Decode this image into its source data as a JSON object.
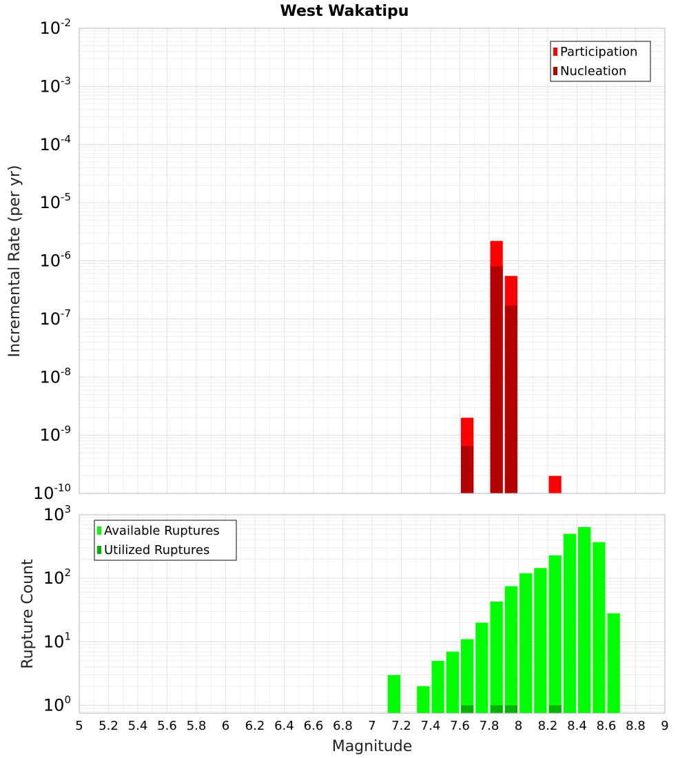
{
  "chart_data": {
    "title": "West Wakatipu",
    "xlabel": "Magnitude",
    "xlim": [
      5,
      9
    ],
    "xticks": [
      5,
      5.2,
      5.4,
      5.6,
      5.8,
      6,
      6.2,
      6.4,
      6.6,
      6.8,
      7,
      7.2,
      7.4,
      7.6,
      7.8,
      8,
      8.2,
      8.4,
      8.6,
      8.8,
      9
    ],
    "xtick_labels": [
      "5",
      "5.2",
      "5.4",
      "5.6",
      "5.8",
      "6",
      "6.2",
      "6.4",
      "6.6",
      "6.8",
      "7",
      "7.2",
      "7.4",
      "7.6",
      "7.8",
      "8",
      "8.2",
      "8.4",
      "8.6",
      "8.8",
      "9"
    ],
    "bin_width": 0.1,
    "panels": [
      {
        "type": "bar",
        "ylabel": "Incremental Rate (per yr)",
        "yscale": "log",
        "ylim": [
          1e-10,
          0.01
        ],
        "ytick_exponents": [
          "-10",
          "-9",
          "-8",
          "-7",
          "-6",
          "-5",
          "-4",
          "-3",
          "-2"
        ],
        "ytick_base": "10",
        "grid": true,
        "legend_position": "top-right",
        "series": [
          {
            "name": "Participation",
            "color": "#ff0000",
            "x": [
              7.65,
              7.85,
              7.95,
              8.25
            ],
            "values": [
              2e-09,
              2.2e-06,
              5.5e-07,
              2e-10
            ]
          },
          {
            "name": "Nucleation",
            "color": "#b30000",
            "x": [
              7.65,
              7.85,
              7.95
            ],
            "values": [
              6.5e-10,
              8e-07,
              1.7e-07
            ]
          }
        ]
      },
      {
        "type": "bar",
        "ylabel": "Rupture Count",
        "yscale": "log",
        "ylim": [
          0.75,
          1000
        ],
        "ytick_exponents": [
          "0",
          "1",
          "2",
          "3"
        ],
        "ytick_base": "10",
        "grid": true,
        "legend_position": "top-left",
        "series": [
          {
            "name": "Available Ruptures",
            "color": "#00ff00",
            "x": [
              7.15,
              7.35,
              7.45,
              7.55,
              7.65,
              7.75,
              7.85,
              7.95,
              8.05,
              8.15,
              8.25,
              8.35,
              8.45,
              8.55,
              8.65
            ],
            "values": [
              3,
              2,
              5,
              7,
              11,
              20,
              43,
              75,
              120,
              145,
              230,
              500,
              640,
              370,
              28
            ]
          },
          {
            "name": "Utilized Ruptures",
            "color": "#00b300",
            "x": [
              7.65,
              7.85,
              7.95,
              8.25
            ],
            "values": [
              1,
              1,
              1,
              1
            ]
          }
        ]
      }
    ]
  }
}
